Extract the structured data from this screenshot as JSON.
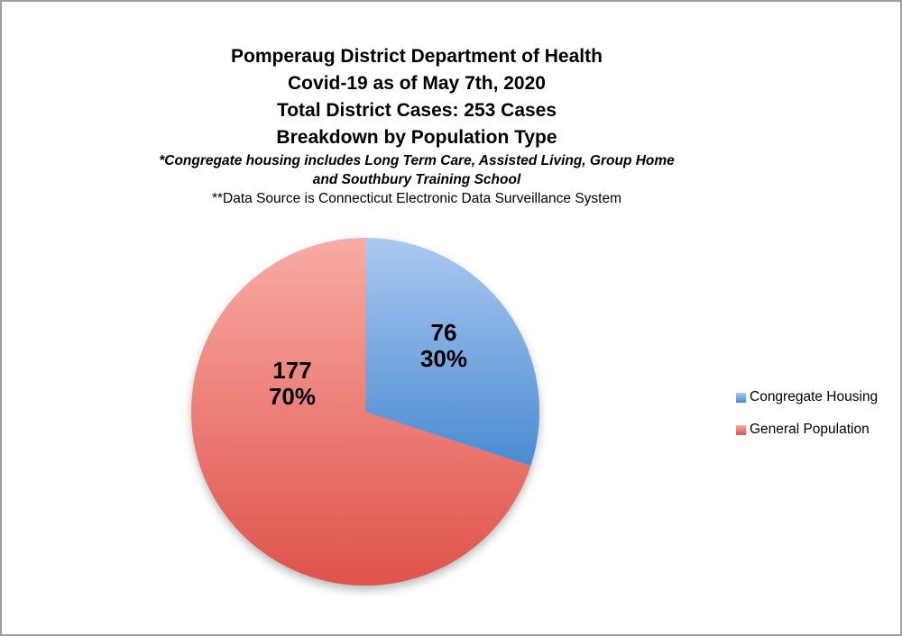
{
  "header": {
    "title_lines": [
      "Pomperaug District Department of Health",
      "Covid-19 as of May 7th, 2020",
      "Total District Cases: 253 Cases",
      "Breakdown by Population Type"
    ],
    "note_bold_italic_lines": [
      "*Congregate housing includes Long Term Care, Assisted Living, Group Home",
      "and Southbury Training School"
    ],
    "note_plain": "**Data Source is Connecticut Electronic Data Surveillance System"
  },
  "chart_data": {
    "type": "pie",
    "title": "Breakdown by Population Type",
    "categories": [
      "Congregate Housing",
      "General Population"
    ],
    "values": [
      76,
      177
    ],
    "percent_labels": [
      "30%",
      "70%"
    ],
    "total": 253,
    "start_angle_deg": 0,
    "direction": "clockwise",
    "legend_position": "right",
    "data_label_style": "value and percent inside slices",
    "colors": [
      {
        "top": "#aac9f0",
        "bottom": "#4a8bd2"
      },
      {
        "top": "#f8aba4",
        "bottom": "#df534b"
      }
    ]
  }
}
